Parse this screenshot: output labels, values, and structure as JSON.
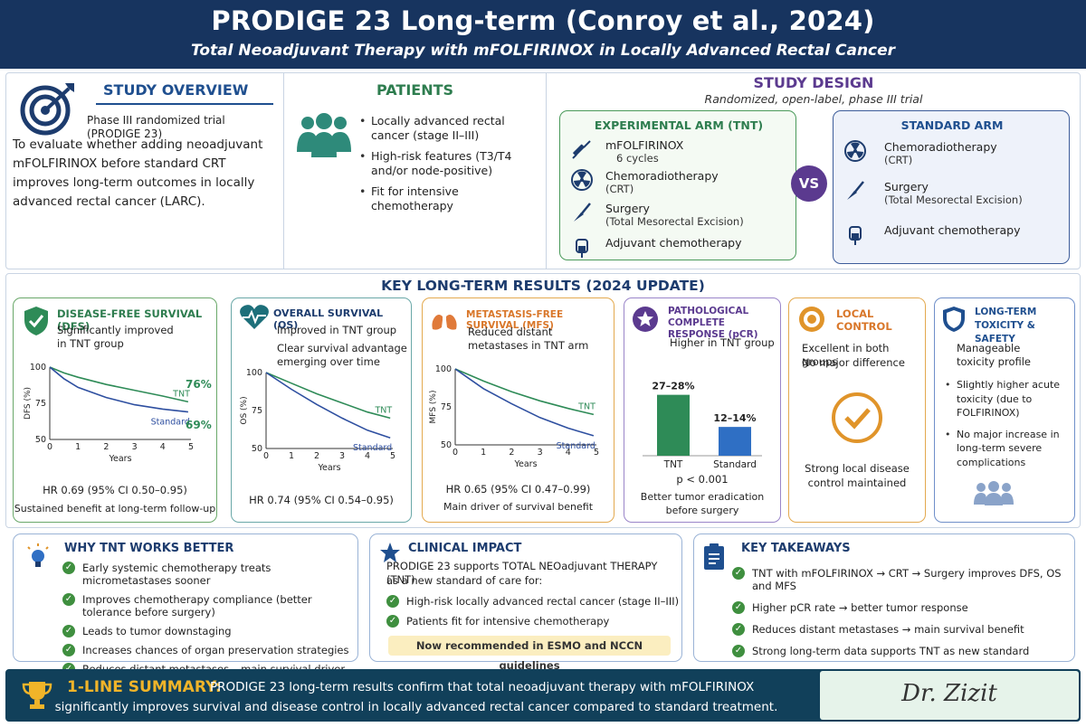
{
  "header": {
    "title": "PRODIGE 23 Long-term (Conroy et al., 2024)",
    "subtitle": "Total Neoadjuvant Therapy with mFOLFIRINOX in Locally Advanced Rectal Cancer"
  },
  "overview": {
    "title": "STUDY OVERVIEW",
    "trial": "Phase III randomized trial (PRODIGE 23)",
    "aim": "To evaluate whether adding neoadjuvant mFOLFIRINOX before standard CRT improves long-term outcomes in locally advanced rectal cancer (LARC)."
  },
  "patients": {
    "title": "PATIENTS",
    "items": [
      "Locally advanced rectal cancer (stage II–III)",
      "High-risk features (T3/T4 and/or node-positive)",
      "Fit for intensive chemotherapy"
    ]
  },
  "design": {
    "title": "STUDY DESIGN",
    "subtitle": "Randomized, open-label, phase III trial",
    "vs": "VS",
    "experimental": {
      "title": "EXPERIMENTAL ARM (TNT)",
      "items": [
        {
          "label": "mFOLFIRINOX",
          "sub": "6 cycles"
        },
        {
          "label": "Chemoradiotherapy",
          "sub": "(CRT)"
        },
        {
          "label": "Surgery",
          "sub": "(Total Mesorectal Excision)"
        },
        {
          "label": "Adjuvant chemotherapy",
          "sub": ""
        }
      ]
    },
    "standard": {
      "title": "STANDARD ARM",
      "items": [
        {
          "label": "Chemoradiotherapy",
          "sub": "(CRT)"
        },
        {
          "label": "Surgery",
          "sub": "(Total Mesorectal Excision)"
        },
        {
          "label": "Adjuvant chemotherapy",
          "sub": ""
        }
      ]
    }
  },
  "results": {
    "title": "KEY LONG-TERM RESULTS (2024 UPDATE)",
    "dfs": {
      "title": "DISEASE-FREE SURVIVAL (DFS)",
      "desc": "Significantly improved in TNT group",
      "hr": "HR 0.69 (95% CI 0.50–0.95)",
      "note": "Sustained benefit at long-term follow-up",
      "tnt_value": "76%",
      "std_value": "69%"
    },
    "os": {
      "title": "OVERALL SURVIVAL (OS)",
      "desc1": "Improved in TNT group",
      "desc2": "Clear survival advantage emerging over time",
      "hr": "HR 0.74 (95% CI 0.54–0.95)"
    },
    "mfs": {
      "title": "METASTASIS-FREE SURVIVAL (MFS)",
      "desc": "Reduced distant metastases in TNT arm",
      "hr": "HR 0.65 (95% CI 0.47–0.99)",
      "note": "Main driver of survival benefit"
    },
    "pcr": {
      "title": "PATHOLOGICAL COMPLETE RESPONSE (pCR)",
      "desc": "Higher in TNT group",
      "p": "p < 0.001",
      "note": "Better tumor eradication before surgery"
    },
    "local": {
      "title": "LOCAL CONTROL",
      "desc1": "Excellent in both groups",
      "desc2": "No major difference",
      "note": "Strong local disease control maintained"
    },
    "tox": {
      "title": "LONG-TERM TOXICITY & SAFETY",
      "desc": "Manageable toxicity profile",
      "items": [
        "Slightly higher acute toxicity (due to FOLFIRINOX)",
        "No major increase in long-term severe complications"
      ]
    }
  },
  "chart_data": [
    {
      "type": "line",
      "ylabel": "DFS (%)",
      "xlabel": "Years",
      "x_ticks": [
        0,
        1,
        2,
        3,
        4,
        5
      ],
      "y_ticks": [
        50,
        75,
        100
      ],
      "xlim": [
        0,
        5
      ],
      "ylim": [
        50,
        100
      ],
      "series": [
        {
          "name": "TNT",
          "x": [
            0,
            0.5,
            1,
            2,
            3,
            4,
            4.9
          ],
          "y": [
            100,
            96,
            93,
            88,
            84,
            80,
            76
          ]
        },
        {
          "name": "Standard",
          "x": [
            0,
            0.5,
            1,
            2,
            3,
            4,
            4.9
          ],
          "y": [
            100,
            92,
            86,
            79,
            74,
            71,
            69
          ]
        }
      ]
    },
    {
      "type": "line",
      "ylabel": "OS (%)",
      "xlabel": "Years",
      "x_ticks": [
        0,
        1,
        2,
        3,
        4,
        5
      ],
      "y_ticks": [
        50,
        75,
        100
      ],
      "xlim": [
        0,
        5
      ],
      "ylim": [
        50,
        100
      ],
      "series": [
        {
          "name": "TNT",
          "x": [
            0,
            1,
            2,
            3,
            4,
            4.9
          ],
          "y": [
            100,
            93,
            86,
            80,
            74,
            70
          ]
        },
        {
          "name": "Standard",
          "x": [
            0,
            1,
            2,
            3,
            4,
            4.9
          ],
          "y": [
            100,
            89,
            79,
            70,
            62,
            57
          ]
        }
      ]
    },
    {
      "type": "line",
      "ylabel": "MFS (%)",
      "xlabel": "Years",
      "x_ticks": [
        0,
        1,
        2,
        3,
        4,
        5
      ],
      "y_ticks": [
        50,
        75,
        100
      ],
      "xlim": [
        0,
        5
      ],
      "ylim": [
        50,
        100
      ],
      "series": [
        {
          "name": "TNT",
          "x": [
            0,
            1,
            2,
            3,
            4,
            4.9
          ],
          "y": [
            100,
            92,
            85,
            79,
            74,
            70
          ]
        },
        {
          "name": "Standard",
          "x": [
            0,
            1,
            2,
            3,
            4,
            4.9
          ],
          "y": [
            100,
            87,
            77,
            68,
            61,
            56
          ]
        }
      ]
    },
    {
      "type": "bar",
      "categories": [
        "TNT",
        "Standard"
      ],
      "values": [
        27.5,
        13
      ],
      "value_labels": [
        "27–28%",
        "12–14%"
      ],
      "ylim": [
        0,
        40
      ],
      "colors": [
        "#2e8b57",
        "#2f6fc4"
      ]
    }
  ],
  "why": {
    "title": "WHY TNT WORKS BETTER",
    "items": [
      "Early systemic chemotherapy treats micrometastases sooner",
      "Improves chemotherapy compliance (better tolerance before surgery)",
      "Leads to tumor downstaging",
      "Increases chances of organ preservation strategies",
      "Reduces distant metastases – main survival driver"
    ]
  },
  "impact": {
    "title": "CLINICAL IMPACT",
    "lead1": "PRODIGE 23 supports TOTAL NEOadjuvant THERAPY (TNT)",
    "lead2": "as a new standard of care for:",
    "items": [
      "High-risk locally advanced rectal cancer (stage II–III)",
      "Patients fit for intensive chemotherapy"
    ],
    "note": "Now recommended in ESMO and NCCN guidelines"
  },
  "takeaways": {
    "title": "KEY TAKEAWAYS",
    "items": [
      "TNT with mFOLFIRINOX → CRT → Surgery improves DFS, OS and MFS",
      "Higher pCR rate → better tumor response",
      "Reduces distant metastases → main survival benefit",
      "Strong long-term data supports TNT as new standard"
    ]
  },
  "summary": {
    "label": "1-LINE SUMMARY:",
    "line1": "PRODIGE 23 long-term results confirm that total neoadjuvant therapy with mFOLFIRINOX",
    "line2": "significantly improves survival and disease control in locally advanced rectal cancer compared to standard treatment.",
    "signature": "Dr. Zizit"
  }
}
